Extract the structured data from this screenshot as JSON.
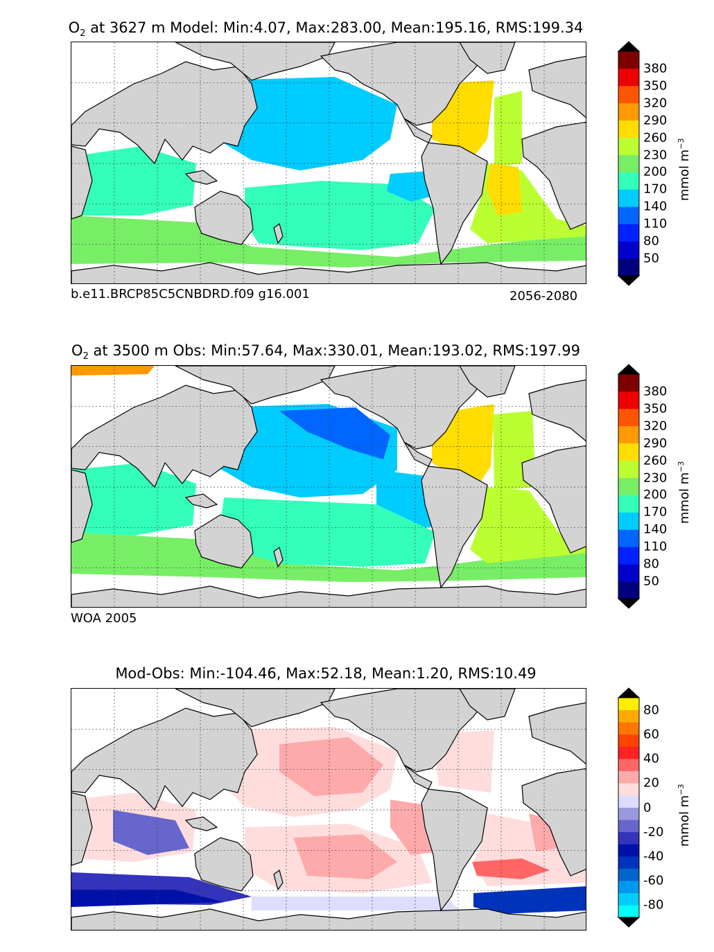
{
  "panels": [
    {
      "title_species": "O",
      "title_sub": "2",
      "title_rest": " at 3627 m Model: Min:4.07, Max:283.00, Mean:195.16, RMS:199.34",
      "footer_left": "b.e11.BRCP85C5CNBDRD.f09 g16.001",
      "footer_right": "2056-2080",
      "colorbar_ticks": [
        "380",
        "350",
        "320",
        "290",
        "260",
        "230",
        "200",
        "170",
        "140",
        "110",
        "80",
        "50"
      ],
      "units_main": "mmol m",
      "units_exp": "−3"
    },
    {
      "title_species": "O",
      "title_sub": "2",
      "title_rest": " at 3500 m Obs: Min:57.64, Max:330.01, Mean:193.02, RMS:197.99",
      "footer_left": "WOA 2005",
      "footer_right": "",
      "colorbar_ticks": [
        "380",
        "350",
        "320",
        "290",
        "260",
        "230",
        "200",
        "170",
        "140",
        "110",
        "80",
        "50"
      ],
      "units_main": "mmol m",
      "units_exp": "−3"
    },
    {
      "title_species": "",
      "title_sub": "",
      "title_rest": "Mod-Obs: Min:-104.46, Max:52.18, Mean:1.20, RMS:10.49",
      "footer_left": "",
      "footer_right": "",
      "colorbar_ticks": [
        "80",
        "60",
        "40",
        "20",
        "0",
        "-20",
        "-40",
        "-60",
        "-80"
      ],
      "units_main": "mmol m",
      "units_exp": "−3"
    }
  ],
  "chart_data": [
    {
      "type": "heatmap",
      "title": "O2 at 3627 m Model: Min:4.07, Max:283.00, Mean:195.16, RMS:199.34",
      "subtitle_left": "b.e11.BRCP85C5CNBDRD.f09 g16.001",
      "subtitle_right": "2056-2080",
      "stats": {
        "min": 4.07,
        "max": 283.0,
        "mean": 195.16,
        "rms": 199.34
      },
      "depth_m": 3627,
      "colorbar": {
        "levels": [
          50,
          80,
          110,
          140,
          170,
          200,
          230,
          260,
          290,
          320,
          350,
          380
        ],
        "colors": [
          "#00007f",
          "#0000cc",
          "#0022ff",
          "#0066ff",
          "#00ccff",
          "#33ffbb",
          "#77ee66",
          "#bbff33",
          "#ffdd00",
          "#ff9900",
          "#ff5500",
          "#ee0000",
          "#7f0000"
        ],
        "extend": "both",
        "units": "mmol m-3"
      },
      "grid": true,
      "land_color": "#d3d3d3"
    },
    {
      "type": "heatmap",
      "title": "O2 at 3500 m Obs: Min:57.64, Max:330.01, Mean:193.02, RMS:197.99",
      "subtitle_left": "WOA 2005",
      "stats": {
        "min": 57.64,
        "max": 330.01,
        "mean": 193.02,
        "rms": 197.99
      },
      "depth_m": 3500,
      "colorbar": {
        "levels": [
          50,
          80,
          110,
          140,
          170,
          200,
          230,
          260,
          290,
          320,
          350,
          380
        ],
        "colors": [
          "#00007f",
          "#0000cc",
          "#0022ff",
          "#0066ff",
          "#00ccff",
          "#33ffbb",
          "#77ee66",
          "#bbff33",
          "#ffdd00",
          "#ff9900",
          "#ff5500",
          "#ee0000",
          "#7f0000"
        ],
        "extend": "both",
        "units": "mmol m-3"
      },
      "grid": true,
      "land_color": "#d3d3d3"
    },
    {
      "type": "heatmap",
      "title": "Mod-Obs: Min:-104.46, Max:52.18, Mean:1.20, RMS:10.49",
      "stats": {
        "min": -104.46,
        "max": 52.18,
        "mean": 1.2,
        "rms": 10.49
      },
      "colorbar": {
        "levels": [
          -80,
          -70,
          -60,
          -50,
          -40,
          -30,
          -20,
          -10,
          0,
          10,
          20,
          30,
          40,
          50,
          60,
          70,
          80
        ],
        "colors": [
          "#00ffff",
          "#00ccff",
          "#0099ee",
          "#0066cc",
          "#0033bb",
          "#0011aa",
          "#3333bb",
          "#6666cc",
          "#9999dd",
          "#ddddff",
          "#ffdddd",
          "#ffaaaa",
          "#ff6666",
          "#ff2222",
          "#ff4400",
          "#ff7700",
          "#ffaa00",
          "#ffee00"
        ],
        "extend": "both",
        "units": "mmol m-3"
      },
      "grid": true,
      "land_color": "#d3d3d3"
    }
  ]
}
